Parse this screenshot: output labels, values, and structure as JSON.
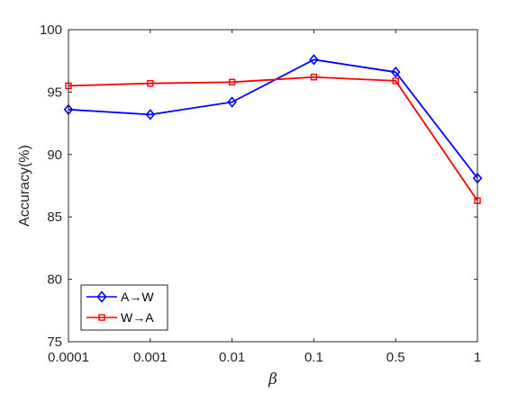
{
  "chart_data": {
    "type": "line",
    "title": "",
    "xlabel": "β",
    "ylabel": "Accuracy(%)",
    "categories": [
      "0.0001",
      "0.001",
      "0.01",
      "0.1",
      "0.5",
      "1"
    ],
    "ylim": [
      75,
      100
    ],
    "yticks": [
      "75",
      "80",
      "85",
      "90",
      "95",
      "100"
    ],
    "grid": false,
    "legend_position": "bottom-left",
    "series": [
      {
        "name": "A→W",
        "values": [
          93.6,
          93.2,
          94.2,
          97.6,
          96.6,
          88.1
        ],
        "color": "#0000ff",
        "marker": "diamond"
      },
      {
        "name": "W→A",
        "values": [
          95.5,
          95.7,
          95.8,
          96.2,
          95.9,
          86.3
        ],
        "color": "#ff0000",
        "marker": "square"
      }
    ]
  }
}
